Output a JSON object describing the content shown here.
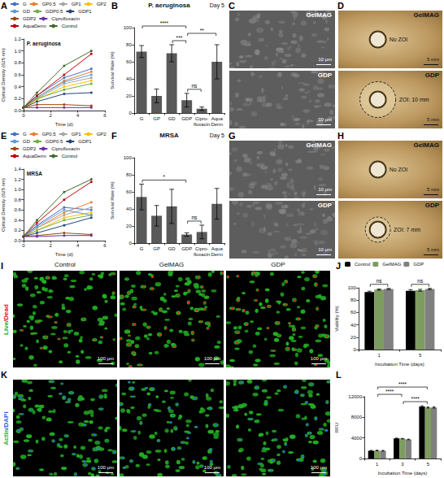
{
  "chart_data": [
    {
      "panel": "A",
      "type": "line",
      "subtitle": "P. aeruginosa",
      "x_label": "Time (d)",
      "y_label": "Optical Density (625 nm)",
      "x": [
        0,
        1,
        3,
        5
      ],
      "xlim": [
        0,
        6
      ],
      "xticks": [
        0,
        2,
        4,
        6
      ],
      "ylim": [
        0,
        1.2
      ],
      "yticks": [
        {
          "value": 0,
          "label": "0.0"
        },
        0.2,
        0.4,
        0.6,
        0.8,
        {
          "value": 1,
          "label": "1.0"
        },
        1.2
      ],
      "grid": false,
      "legend": "top",
      "marker": "circle",
      "series": [
        {
          "name": "G",
          "color": "#4472c4",
          "values": [
            0.05,
            0.25,
            0.55,
            0.7
          ]
        },
        {
          "name": "GP0.5",
          "color": "#ed7d31",
          "values": [
            0.05,
            0.22,
            0.5,
            0.65
          ]
        },
        {
          "name": "GP1",
          "color": "#a5a5a5",
          "values": [
            0.05,
            0.2,
            0.45,
            0.55
          ]
        },
        {
          "name": "GP2",
          "color": "#ffc000",
          "values": [
            0.05,
            0.18,
            0.4,
            0.5
          ]
        },
        {
          "name": "GD",
          "color": "#5b9bd5",
          "values": [
            0.05,
            0.22,
            0.48,
            0.6
          ]
        },
        {
          "name": "GDP0.5",
          "color": "#70ad47",
          "values": [
            0.05,
            0.2,
            0.35,
            0.45
          ]
        },
        {
          "name": "GDP1",
          "color": "#264478",
          "values": [
            0.05,
            0.15,
            0.28,
            0.3
          ]
        },
        {
          "name": "GDP2",
          "color": "#9e480e",
          "values": [
            0.05,
            0.1,
            0.1,
            0.08
          ]
        },
        {
          "name": "Ciprofloxacin",
          "color": "#7030a0",
          "values": [
            0.05,
            0.05,
            0.05,
            0.05
          ]
        },
        {
          "name": "AquaDerm",
          "color": "#c00000",
          "values": [
            0.05,
            0.25,
            0.6,
            0.95
          ]
        },
        {
          "name": "Control",
          "color": "#43682b",
          "values": [
            0.05,
            0.3,
            0.75,
            1.0
          ]
        }
      ]
    },
    {
      "panel": "B",
      "type": "bar",
      "title": "P. aeruginosa",
      "annotations": [
        "Day 5"
      ],
      "y_label": "Survival Rate (%)",
      "categories": [
        "G",
        "GP",
        "GD",
        "GDP",
        "Cipro-floxacin",
        "Aqua Derm"
      ],
      "values": [
        72,
        20,
        70,
        15,
        5,
        60
      ],
      "errors": [
        7,
        8,
        10,
        8,
        2,
        20
      ],
      "color": "#595959",
      "ylim": [
        0,
        100
      ],
      "yticks": [
        0,
        20,
        40,
        60,
        80,
        100
      ],
      "grid": false,
      "significance": [
        {
          "from": "G",
          "to": "GDP",
          "label": "****"
        },
        {
          "from": "GD",
          "to": "GDP",
          "label": "***"
        },
        {
          "from": "GDP",
          "to": "Aqua Derm",
          "label": "**"
        },
        {
          "from": "GDP",
          "to": "Cipro-floxacin",
          "label": "ns"
        }
      ]
    },
    {
      "panel": "E",
      "type": "line",
      "subtitle": "MRSA",
      "x_label": "Time (d)",
      "y_label": "Optical Density (625 nm)",
      "x": [
        0,
        1,
        3,
        5
      ],
      "xlim": [
        0,
        6
      ],
      "xticks": [
        0,
        2,
        4,
        6
      ],
      "ylim": [
        0,
        1.4
      ],
      "yticks": [
        {
          "value": 0,
          "label": "0.0"
        },
        0.2,
        0.4,
        0.6,
        0.8,
        {
          "value": 1,
          "label": "1.0"
        },
        1.2,
        1.4
      ],
      "grid": false,
      "legend": "top",
      "marker": "circle",
      "series": [
        {
          "name": "G",
          "color": "#4472c4",
          "values": [
            0.08,
            0.3,
            0.65,
            0.6
          ]
        },
        {
          "name": "GP0.5",
          "color": "#ed7d31",
          "values": [
            0.08,
            0.25,
            0.55,
            0.75
          ]
        },
        {
          "name": "GP1",
          "color": "#a5a5a5",
          "values": [
            0.08,
            0.25,
            0.5,
            0.65
          ]
        },
        {
          "name": "GP2",
          "color": "#ffc000",
          "values": [
            0.08,
            0.2,
            0.45,
            0.55
          ]
        },
        {
          "name": "GD",
          "color": "#5b9bd5",
          "values": [
            0.08,
            0.28,
            0.6,
            0.5
          ]
        },
        {
          "name": "GDP0.5",
          "color": "#70ad47",
          "values": [
            0.08,
            0.2,
            0.4,
            0.5
          ]
        },
        {
          "name": "GDP1",
          "color": "#264478",
          "values": [
            0.08,
            0.15,
            0.3,
            0.45
          ]
        },
        {
          "name": "GDP2",
          "color": "#9e480e",
          "values": [
            0.08,
            0.1,
            0.15,
            0.12
          ]
        },
        {
          "name": "Ciprofloxacin",
          "color": "#7030a0",
          "values": [
            0.08,
            0.08,
            0.1,
            0.1
          ]
        },
        {
          "name": "AquaDerm",
          "color": "#c00000",
          "values": [
            0.08,
            0.35,
            0.8,
            1.15
          ]
        },
        {
          "name": "Control",
          "color": "#43682b",
          "values": [
            0.08,
            0.4,
            0.95,
            1.2
          ]
        }
      ]
    },
    {
      "panel": "F",
      "type": "bar",
      "title": "MRSA",
      "annotations": [
        "Day 5"
      ],
      "y_label": "Survival Rate (%)",
      "categories": [
        "G",
        "GP",
        "GD",
        "GDP",
        "Cipro-floxacin",
        "Aqua Derm"
      ],
      "values": [
        54,
        32,
        43,
        10,
        13,
        46
      ],
      "errors": [
        15,
        12,
        20,
        2,
        8,
        18
      ],
      "color": "#595959",
      "ylim": [
        0,
        100
      ],
      "yticks": [
        0,
        20,
        40,
        60,
        80,
        100
      ],
      "grid": false,
      "significance": [
        {
          "from": "G",
          "to": "GDP",
          "label": "*"
        },
        {
          "from": "GDP",
          "to": "Cipro-floxacin",
          "label": "ns"
        }
      ]
    },
    {
      "panel": "J",
      "type": "bar",
      "x_label": "Incubation Time (days)",
      "y_label": "Viability (%)",
      "categories": [
        "1",
        "5"
      ],
      "ylim": [
        0,
        100
      ],
      "yticks": [
        0,
        20,
        40,
        60,
        80,
        100
      ],
      "grid": false,
      "legend": "top",
      "series": [
        {
          "name": "Control",
          "color": "#000000",
          "values": [
            93,
            95
          ],
          "errors": [
            1.5,
            2
          ]
        },
        {
          "name": "GelMAG",
          "color": "#7f9c60",
          "values": [
            97,
            96
          ],
          "errors": [
            1,
            1.5
          ]
        },
        {
          "name": "GDP",
          "color": "#808080",
          "values": [
            98,
            98
          ],
          "errors": [
            1,
            1
          ]
        }
      ],
      "significance": [
        {
          "category": "1",
          "from": "Control",
          "to": "GDP",
          "label": "ns"
        },
        {
          "category": "5",
          "from": "Control",
          "to": "GDP",
          "label": "ns"
        }
      ]
    },
    {
      "panel": "L",
      "type": "bar",
      "x_label": "Incubation Time (days)",
      "y_label": "RFU",
      "categories": [
        "1",
        "3",
        "5"
      ],
      "ylim": [
        0,
        12000
      ],
      "yticks": [
        0,
        4000,
        8000,
        12000
      ],
      "grid": false,
      "series": [
        {
          "name": "Control",
          "color": "#000000",
          "values": [
            1500,
            3900,
            10100
          ],
          "errors": [
            80,
            60,
            150
          ]
        },
        {
          "name": "GelMAG",
          "color": "#7f9c60",
          "values": [
            1550,
            3850,
            9900
          ],
          "errors": [
            60,
            50,
            100
          ]
        },
        {
          "name": "GDP",
          "color": "#808080",
          "values": [
            1500,
            3700,
            9900
          ],
          "errors": [
            70,
            60,
            120
          ]
        }
      ],
      "significance": [
        {
          "from": "1",
          "to": "3",
          "label": "****"
        },
        {
          "from": "3",
          "to": "5",
          "label": "****"
        },
        {
          "from": "1",
          "to": "5",
          "label": "****"
        }
      ]
    }
  ],
  "image_panels": [
    {
      "panel": "C",
      "type": "sem",
      "images": [
        {
          "label": "GelMAG",
          "scale_bar": "10 µm"
        },
        {
          "label": "GDP",
          "scale_bar": "10 µm"
        }
      ]
    },
    {
      "panel": "D",
      "type": "photo",
      "images": [
        {
          "label": "GelMAG",
          "note": "No ZOI",
          "scale_bar": "5 mm"
        },
        {
          "label": "GDP",
          "note": "ZOI: 10 mm",
          "zoi_mm": 10,
          "scale_bar": "5 mm"
        }
      ]
    },
    {
      "panel": "G",
      "type": "sem",
      "images": [
        {
          "label": "GelMAG",
          "scale_bar": "10 µm"
        },
        {
          "label": "GDP",
          "scale_bar": "10 µm"
        }
      ]
    },
    {
      "panel": "H",
      "type": "photo",
      "images": [
        {
          "label": "GelMAG",
          "note": "No ZOI",
          "scale_bar": "5 mm"
        },
        {
          "label": "GDP",
          "note": "ZOI: 7 mm",
          "zoi_mm": 7,
          "scale_bar": "5 mm"
        }
      ]
    },
    {
      "panel": "I",
      "type": "fluorescence",
      "row_label": "Live/Dead",
      "colors": [
        "#22b022",
        "#e02020"
      ],
      "images": [
        {
          "label": "Control",
          "scale_bar": "100 µm"
        },
        {
          "label": "GelMAG",
          "scale_bar": "100 µm"
        },
        {
          "label": "GDP",
          "scale_bar": "100 µm"
        }
      ]
    },
    {
      "panel": "K",
      "type": "fluorescence",
      "row_label": "Actin/DAPI",
      "colors": [
        "#22b022",
        "#2f5fe0"
      ],
      "images": [
        {
          "scale_bar": "100 µm"
        },
        {
          "scale_bar": "100 µm"
        },
        {
          "scale_bar": "100 µm"
        }
      ]
    }
  ]
}
